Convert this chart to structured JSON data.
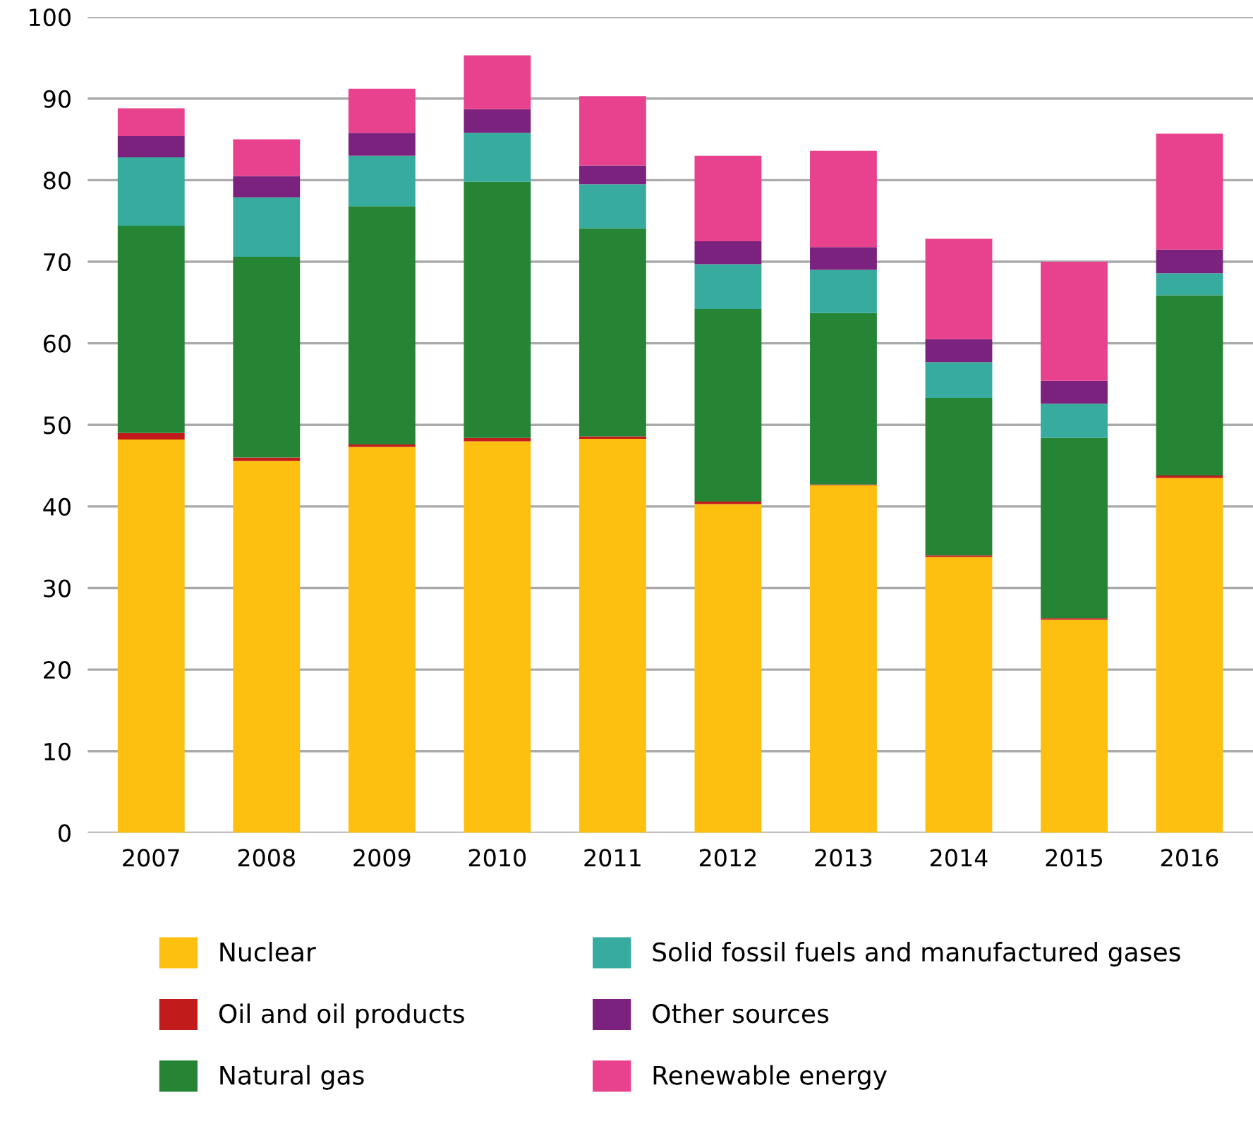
{
  "chart_data": {
    "type": "bar",
    "stacked": true,
    "categories": [
      "2007",
      "2008",
      "2009",
      "2010",
      "2011",
      "2012",
      "2013",
      "2014",
      "2015",
      "2016"
    ],
    "series": [
      {
        "name": "Nuclear",
        "color": "#fdbf10",
        "values": [
          48.2,
          45.6,
          47.3,
          48.0,
          48.3,
          40.3,
          42.6,
          33.8,
          26.1,
          43.5
        ]
      },
      {
        "name": "Oil and oil products",
        "color": "#c21b1b",
        "values": [
          0.8,
          0.4,
          0.3,
          0.4,
          0.3,
          0.3,
          0.1,
          0.2,
          0.2,
          0.3
        ]
      },
      {
        "name": "Natural gas",
        "color": "#268535",
        "values": [
          25.4,
          24.6,
          29.2,
          31.4,
          25.5,
          23.6,
          21.0,
          19.3,
          22.1,
          22.1
        ]
      },
      {
        "name": "Solid fossil fuels and manufactured gases",
        "color": "#36ab9e",
        "values": [
          8.4,
          7.3,
          6.2,
          6.0,
          5.4,
          5.5,
          5.3,
          4.4,
          4.2,
          2.7
        ]
      },
      {
        "name": "Other sources",
        "color": "#7b227e",
        "values": [
          2.6,
          2.6,
          2.8,
          2.9,
          2.3,
          2.8,
          2.8,
          2.8,
          2.8,
          2.9
        ]
      },
      {
        "name": "Renewable energy",
        "color": "#e8428e",
        "values": [
          3.4,
          4.5,
          5.4,
          6.6,
          8.5,
          10.5,
          11.8,
          12.3,
          14.6,
          14.2
        ]
      }
    ],
    "ylim": [
      0,
      100
    ],
    "yticks": [
      0,
      10,
      20,
      30,
      40,
      50,
      60,
      70,
      80,
      90,
      100
    ],
    "grid": "y",
    "legend": "bottom"
  }
}
